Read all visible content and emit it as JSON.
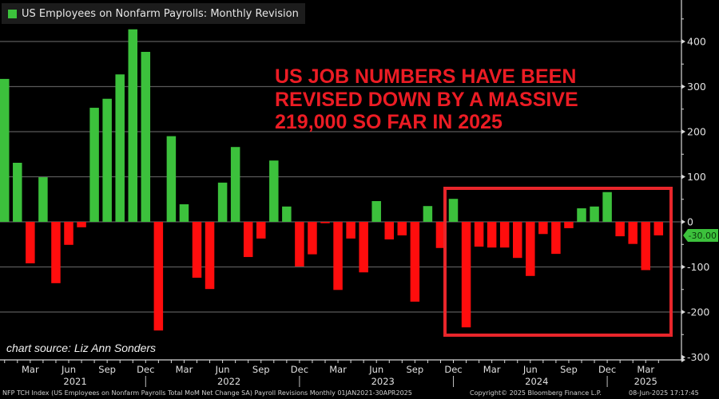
{
  "legend": {
    "label": "US Employees on Nonfarm Payrolls: Monthly Revision",
    "color": "#3cc13c"
  },
  "headline": "US JOB NUMBERS HAVE BEEN\nREVISED DOWN BY A MASSIVE\n219,000 SO FAR IN 2025",
  "source": "chart source: Liz Ann Sonders",
  "last_value_badge": "-30.00",
  "footer": {
    "left": "NFP TCH Index (US Employees on Nonfarm Payrolls Total MoM Net Change SA) Payroll Revisions  Monthly 01JAN2021-30APR2025",
    "center": "Copyright© 2025 Bloomberg Finance L.P.",
    "right": "08-Jun-2025 17:17:45"
  },
  "colors": {
    "positive": "#3cc13c",
    "negative": "#ff0d0d",
    "highlight_box": "#e8262b",
    "grid": "#5a5a5a",
    "axis": "#d8d8d8",
    "background": "#000000"
  },
  "chart_data": {
    "type": "bar",
    "title": "US Employees on Nonfarm Payrolls: Monthly Revision",
    "xlabel": "",
    "ylabel": "",
    "ylim": [
      -300,
      450
    ],
    "yticks": [
      400,
      300,
      200,
      100,
      0,
      -100,
      -200,
      -300
    ],
    "grid": true,
    "legend_position": "top-left",
    "axis_position": "right",
    "categories": [
      "Jan 2021",
      "Feb 2021",
      "Mar 2021",
      "Apr 2021",
      "May 2021",
      "Jun 2021",
      "Jul 2021",
      "Aug 2021",
      "Sep 2021",
      "Oct 2021",
      "Nov 2021",
      "Dec 2021",
      "Jan 2022",
      "Feb 2022",
      "Mar 2022",
      "Apr 2022",
      "May 2022",
      "Jun 2022",
      "Jul 2022",
      "Aug 2022",
      "Sep 2022",
      "Oct 2022",
      "Nov 2022",
      "Dec 2022",
      "Jan 2023",
      "Feb 2023",
      "Mar 2023",
      "Apr 2023",
      "May 2023",
      "Jun 2023",
      "Jul 2023",
      "Aug 2023",
      "Sep 2023",
      "Oct 2023",
      "Nov 2023",
      "Dec 2023",
      "Jan 2024",
      "Feb 2024",
      "Mar 2024",
      "Apr 2024",
      "May 2024",
      "Jun 2024",
      "Jul 2024",
      "Aug 2024",
      "Sep 2024",
      "Oct 2024",
      "Nov 2024",
      "Dec 2024",
      "Jan 2025",
      "Feb 2025",
      "Mar 2025",
      "Apr 2025"
    ],
    "values": [
      317,
      131,
      -92,
      99,
      -136,
      -51,
      -12,
      253,
      273,
      327,
      427,
      377,
      -241,
      190,
      39,
      -124,
      -149,
      87,
      166,
      -78,
      -37,
      136,
      34,
      -99,
      -72,
      -3,
      -151,
      -37,
      -112,
      46,
      -39,
      -30,
      -177,
      35,
      -58,
      51,
      -234,
      -55,
      -57,
      -57,
      -80,
      -120,
      -27,
      -71,
      -14,
      30,
      34,
      66,
      -32,
      -49,
      -107,
      -30
    ],
    "x_tick_labels": [
      {
        "label": "Mar",
        "index": 2
      },
      {
        "label": "Jun",
        "index": 5
      },
      {
        "label": "Sep",
        "index": 8
      },
      {
        "label": "Dec",
        "index": 11
      },
      {
        "label": "Mar",
        "index": 14
      },
      {
        "label": "Jun",
        "index": 17
      },
      {
        "label": "Sep",
        "index": 20
      },
      {
        "label": "Dec",
        "index": 23
      },
      {
        "label": "Mar",
        "index": 26
      },
      {
        "label": "Jun",
        "index": 29
      },
      {
        "label": "Sep",
        "index": 32
      },
      {
        "label": "Dec",
        "index": 35
      },
      {
        "label": "Mar",
        "index": 38
      },
      {
        "label": "Jun",
        "index": 41
      },
      {
        "label": "Sep",
        "index": 44
      },
      {
        "label": "Dec",
        "index": 47
      },
      {
        "label": "Mar",
        "index": 50
      }
    ],
    "year_labels": [
      {
        "label": "2021",
        "index": 5.5
      },
      {
        "label": "2022",
        "index": 17.5
      },
      {
        "label": "2023",
        "index": 29.5
      },
      {
        "label": "2024",
        "index": 41.5
      },
      {
        "label": "2025",
        "index": 50
      }
    ],
    "year_separators": [
      11,
      23,
      35,
      47
    ],
    "annotations": [
      {
        "type": "rect",
        "label": "highlight 2024-2025 revisions",
        "from_index": 35,
        "to_index": 51
      },
      {
        "type": "text",
        "text": "US JOB NUMBERS HAVE BEEN REVISED DOWN BY A MASSIVE 219,000 SO FAR IN 2025"
      },
      {
        "type": "text",
        "text": "chart source: Liz Ann Sonders"
      },
      {
        "type": "badge",
        "text": "-30.00",
        "value": -30
      }
    ]
  }
}
